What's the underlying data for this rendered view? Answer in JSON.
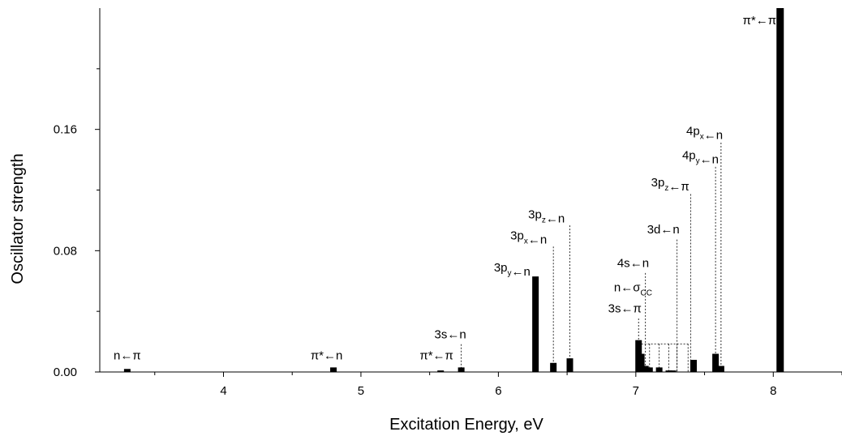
{
  "chart_data": {
    "type": "bar",
    "xlabel": "Excitation Energy, eV",
    "ylabel": "Oscillator strength",
    "xlim": [
      3.1,
      8.5
    ],
    "ylim": [
      0,
      0.24
    ],
    "x_ticks": [
      4,
      5,
      6,
      7,
      8
    ],
    "x_tick_labels": [
      "4",
      "5",
      "6",
      "7",
      "8"
    ],
    "y_ticks": [
      0,
      0.08,
      0.16
    ],
    "y_tick_labels": [
      "0.00",
      "0.08",
      "0.16"
    ],
    "y_minor_ticks": [
      0.04,
      0.12,
      0.2
    ],
    "grid": false,
    "bar_color": "#000000",
    "bars": [
      {
        "x": 3.3,
        "y": 0.002
      },
      {
        "x": 4.8,
        "y": 0.003
      },
      {
        "x": 5.58,
        "y": 0.001
      },
      {
        "x": 5.73,
        "y": 0.003
      },
      {
        "x": 6.27,
        "y": 0.063
      },
      {
        "x": 6.4,
        "y": 0.006
      },
      {
        "x": 6.52,
        "y": 0.009
      },
      {
        "x": 7.02,
        "y": 0.021
      },
      {
        "x": 7.04,
        "y": 0.012
      },
      {
        "x": 7.07,
        "y": 0.004
      },
      {
        "x": 7.1,
        "y": 0.003
      },
      {
        "x": 7.17,
        "y": 0.003
      },
      {
        "x": 7.24,
        "y": 0.001
      },
      {
        "x": 7.27,
        "y": 0.001
      },
      {
        "x": 7.42,
        "y": 0.008
      },
      {
        "x": 7.58,
        "y": 0.012
      },
      {
        "x": 7.62,
        "y": 0.004
      },
      {
        "x": 8.05,
        "y": 0.24
      }
    ],
    "annotations": [
      {
        "x": 3.3,
        "label_y": 0.0083,
        "line_top": null,
        "parts": [
          [
            "n",
            ""
          ],
          [
            "←π",
            ""
          ]
        ]
      },
      {
        "x": 4.75,
        "label_y": 0.0083,
        "line_top": null,
        "parts": [
          [
            "π*",
            ""
          ],
          [
            "←n",
            ""
          ]
        ]
      },
      {
        "x": 5.55,
        "label_y": 0.0083,
        "line_top": null,
        "parts": [
          [
            "π*",
            ""
          ],
          [
            "←π",
            ""
          ]
        ]
      },
      {
        "x": 5.65,
        "label_y": 0.0223,
        "line_top": 0.0183,
        "line_x": 5.73,
        "parts": [
          [
            "3s",
            ""
          ],
          [
            "←n",
            ""
          ]
        ]
      },
      {
        "x": 6.1,
        "label_y": 0.0663,
        "line_top": null,
        "parts": [
          [
            "3p",
            "y"
          ],
          [
            "←n",
            ""
          ]
        ]
      },
      {
        "x": 6.22,
        "label_y": 0.0873,
        "line_top": 0.0827,
        "line_x": 6.4,
        "parts": [
          [
            "3p",
            "x"
          ],
          [
            "←n",
            ""
          ]
        ]
      },
      {
        "x": 6.35,
        "label_y": 0.1013,
        "line_top": 0.0967,
        "line_x": 6.52,
        "parts": [
          [
            "3p",
            "z"
          ],
          [
            "←n",
            ""
          ]
        ]
      },
      {
        "x": 6.92,
        "label_y": 0.0393,
        "line_top": 0.0353,
        "line_x": 7.02,
        "parts": [
          [
            "3s",
            ""
          ],
          [
            "←π",
            ""
          ]
        ]
      },
      {
        "x": 6.98,
        "label_y": 0.0533,
        "line_top": null,
        "parts": [
          [
            "n",
            ""
          ],
          [
            "←σ",
            "CC"
          ]
        ]
      },
      {
        "x": 6.98,
        "label_y": 0.0693,
        "line_top": 0.0653,
        "line_x": 7.07,
        "parts": [
          [
            "4s",
            ""
          ],
          [
            "←n",
            ""
          ]
        ]
      },
      {
        "x": 7.2,
        "label_y": 0.0913,
        "line_top": 0.0873,
        "line_x": 7.3,
        "parts": [
          [
            "3d",
            ""
          ],
          [
            "←n",
            ""
          ]
        ]
      },
      {
        "x": 7.25,
        "label_y": 0.1223,
        "line_top": 0.1173,
        "line_x": 7.4,
        "parts": [
          [
            "3p",
            "z"
          ],
          [
            "←π",
            ""
          ]
        ]
      },
      {
        "x": 7.47,
        "label_y": 0.1403,
        "line_top": 0.1353,
        "line_x": 7.58,
        "parts": [
          [
            "4p",
            "y"
          ],
          [
            "←n",
            ""
          ]
        ]
      },
      {
        "x": 7.5,
        "label_y": 0.1563,
        "line_top": 0.1513,
        "line_x": 7.62,
        "parts": [
          [
            "4p",
            "x"
          ],
          [
            "←n",
            ""
          ]
        ]
      },
      {
        "x": 7.9,
        "label_y": 0.2293,
        "line_top": null,
        "parts": [
          [
            "π*",
            ""
          ],
          [
            "←π",
            ""
          ]
        ]
      }
    ],
    "brackets": [
      [
        7.04,
        7.1,
        7.17,
        7.24,
        7.3,
        7.38
      ]
    ]
  }
}
